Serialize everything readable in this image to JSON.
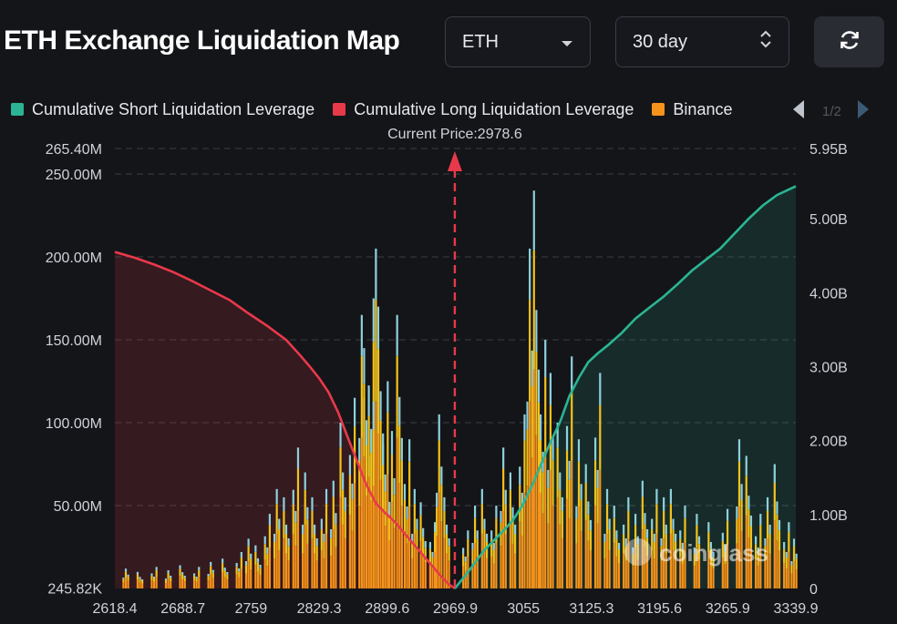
{
  "header": {
    "title": "ETH Exchange Liquidation Map",
    "asset_select": "ETH",
    "period_select": "30 day"
  },
  "legend": {
    "items": [
      {
        "label": "Cumulative Short Liquidation Leverage",
        "color": "#2bb594"
      },
      {
        "label": "Cumulative Long Liquidation Leverage",
        "color": "#e8394a"
      },
      {
        "label": "Binance",
        "color": "#f7931a"
      }
    ],
    "page": "1/2"
  },
  "watermark": "coinglass",
  "colors": {
    "background": "#141519",
    "short_line": "#2bb594",
    "long_line": "#e8394a",
    "binance_bar": "#f7931a",
    "okx_bar": "#f3c21b",
    "other_bar": "#8ed1dc",
    "current_price_marker": "#e8394a"
  },
  "chart_data": {
    "type": "bar",
    "current_price": {
      "label": "Current Price:2978.6",
      "value": 2978.6
    },
    "x_ticks": [
      "2618.4",
      "2688.7",
      "2759",
      "2829.3",
      "2899.6",
      "2969.9",
      "3055",
      "3125.3",
      "3195.6",
      "3265.9",
      "3339.9"
    ],
    "xlim": [
      2618.4,
      3339.9
    ],
    "y_left": {
      "ticks": [
        "245.82K",
        "50.00M",
        "100.00M",
        "150.00M",
        "200.00M",
        "250.00M",
        "265.40M"
      ],
      "range": [
        0,
        265.4
      ],
      "unit": "M"
    },
    "y_right": {
      "ticks": [
        "0",
        "1.00B",
        "2.00B",
        "3.00B",
        "4.00B",
        "5.00B",
        "5.95B"
      ],
      "range": [
        0,
        5.95
      ],
      "unit": "B"
    },
    "long_cumulative": {
      "x": [
        2618.4,
        2640,
        2660,
        2680,
        2700,
        2720,
        2740,
        2760,
        2780,
        2800,
        2815,
        2825,
        2835,
        2845,
        2855,
        2865,
        2875,
        2885,
        2895,
        2905,
        2915,
        2925,
        2935,
        2945,
        2955,
        2965,
        2972,
        2978.6
      ],
      "values": [
        4.55,
        4.47,
        4.38,
        4.28,
        4.16,
        4.03,
        3.9,
        3.72,
        3.55,
        3.36,
        3.15,
        3.0,
        2.84,
        2.65,
        2.38,
        2.05,
        1.72,
        1.4,
        1.15,
        1.02,
        0.9,
        0.75,
        0.6,
        0.45,
        0.3,
        0.15,
        0.06,
        0.0
      ]
    },
    "short_cumulative": {
      "x": [
        2978.6,
        2990,
        3000,
        3010,
        3020,
        3030,
        3040,
        3050,
        3060,
        3070,
        3080,
        3090,
        3100,
        3110,
        3120,
        3130,
        3140,
        3155,
        3170,
        3185,
        3200,
        3215,
        3230,
        3245,
        3260,
        3275,
        3290,
        3305,
        3320,
        3339.9
      ],
      "values": [
        0.0,
        0.18,
        0.35,
        0.52,
        0.65,
        0.78,
        0.92,
        1.12,
        1.38,
        1.68,
        1.98,
        2.25,
        2.6,
        2.85,
        3.06,
        3.18,
        3.28,
        3.45,
        3.65,
        3.8,
        3.95,
        4.12,
        4.3,
        4.45,
        4.6,
        4.8,
        5.0,
        5.18,
        5.32,
        5.44
      ]
    },
    "bar_groups": [
      {
        "x": 2630,
        "total": 12
      },
      {
        "x": 2645,
        "total": 10
      },
      {
        "x": 2660,
        "total": 13
      },
      {
        "x": 2675,
        "total": 11
      },
      {
        "x": 2690,
        "total": 14
      },
      {
        "x": 2705,
        "total": 13
      },
      {
        "x": 2720,
        "total": 16
      },
      {
        "x": 2735,
        "total": 18
      },
      {
        "x": 2750,
        "total": 22
      },
      {
        "x": 2760,
        "total": 30
      },
      {
        "x": 2770,
        "total": 26
      },
      {
        "x": 2780,
        "total": 45
      },
      {
        "x": 2790,
        "total": 60
      },
      {
        "x": 2800,
        "total": 55
      },
      {
        "x": 2810,
        "total": 85
      },
      {
        "x": 2820,
        "total": 70
      },
      {
        "x": 2830,
        "total": 55
      },
      {
        "x": 2840,
        "total": 60
      },
      {
        "x": 2850,
        "total": 65
      },
      {
        "x": 2860,
        "total": 100
      },
      {
        "x": 2870,
        "total": 115
      },
      {
        "x": 2880,
        "total": 165
      },
      {
        "x": 2885,
        "total": 145
      },
      {
        "x": 2890,
        "total": 175
      },
      {
        "x": 2895,
        "total": 205
      },
      {
        "x": 2900,
        "total": 170
      },
      {
        "x": 2905,
        "total": 125
      },
      {
        "x": 2912,
        "total": 95
      },
      {
        "x": 2920,
        "total": 165
      },
      {
        "x": 2928,
        "total": 90
      },
      {
        "x": 2936,
        "total": 60
      },
      {
        "x": 2945,
        "total": 52
      },
      {
        "x": 2955,
        "total": 40
      },
      {
        "x": 2962,
        "total": 105
      },
      {
        "x": 2970,
        "total": 55
      },
      {
        "x": 2990,
        "total": 35
      },
      {
        "x": 3000,
        "total": 50
      },
      {
        "x": 3010,
        "total": 60
      },
      {
        "x": 3020,
        "total": 50
      },
      {
        "x": 3030,
        "total": 85
      },
      {
        "x": 3040,
        "total": 70
      },
      {
        "x": 3050,
        "total": 105
      },
      {
        "x": 3058,
        "total": 205
      },
      {
        "x": 3065,
        "total": 240
      },
      {
        "x": 3072,
        "total": 150
      },
      {
        "x": 3080,
        "total": 130
      },
      {
        "x": 3090,
        "total": 100
      },
      {
        "x": 3100,
        "total": 140
      },
      {
        "x": 3110,
        "total": 90
      },
      {
        "x": 3120,
        "total": 75
      },
      {
        "x": 3130,
        "total": 130
      },
      {
        "x": 3140,
        "total": 60
      },
      {
        "x": 3150,
        "total": 50
      },
      {
        "x": 3160,
        "total": 55
      },
      {
        "x": 3170,
        "total": 45
      },
      {
        "x": 3180,
        "total": 65
      },
      {
        "x": 3190,
        "total": 60
      },
      {
        "x": 3200,
        "total": 55
      },
      {
        "x": 3210,
        "total": 60
      },
      {
        "x": 3220,
        "total": 50
      },
      {
        "x": 3235,
        "total": 45
      },
      {
        "x": 3250,
        "total": 40
      },
      {
        "x": 3265,
        "total": 48
      },
      {
        "x": 3280,
        "total": 90
      },
      {
        "x": 3290,
        "total": 80
      },
      {
        "x": 3300,
        "total": 45
      },
      {
        "x": 3310,
        "total": 55
      },
      {
        "x": 3320,
        "total": 75
      },
      {
        "x": 3330,
        "total": 40
      },
      {
        "x": 3338,
        "total": 30
      }
    ]
  }
}
